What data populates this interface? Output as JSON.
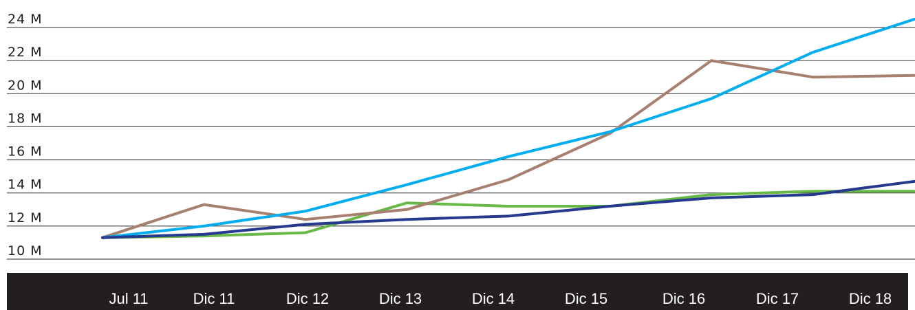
{
  "chart_data": {
    "type": "line",
    "categories": [
      "Jul 11",
      "Dic 11",
      "Dic 12",
      "Dic 13",
      "Dic 14",
      "Dic 15",
      "Dic 16",
      "Dic 17",
      "Dic 18"
    ],
    "y_ticks": [
      {
        "value": 24,
        "label": "24 M"
      },
      {
        "value": 22,
        "label": "22 M"
      },
      {
        "value": 20,
        "label": "20 M"
      },
      {
        "value": 18,
        "label": "18 M"
      },
      {
        "value": 16,
        "label": "16 M"
      },
      {
        "value": 14,
        "label": "14 M"
      },
      {
        "value": 12,
        "label": "12 M"
      },
      {
        "value": 10,
        "label": "10 M"
      }
    ],
    "ylim": [
      10,
      24
    ],
    "grid": true,
    "legend": "none",
    "series": [
      {
        "color": "#67b847",
        "values": [
          11.3,
          11.4,
          11.6,
          13.4,
          13.2,
          13.2,
          13.9,
          14.1,
          14.1
        ]
      },
      {
        "color": "#a77f6f",
        "values": [
          11.3,
          13.3,
          12.4,
          13.0,
          14.8,
          17.6,
          22.0,
          21.0,
          21.1
        ]
      },
      {
        "color": "#00adef",
        "values": [
          11.3,
          12.0,
          12.9,
          14.5,
          16.2,
          17.7,
          19.7,
          22.5,
          24.5
        ]
      },
      {
        "color": "#253a8f",
        "values": [
          11.3,
          11.5,
          12.1,
          12.4,
          12.6,
          13.2,
          13.7,
          13.9,
          14.7
        ]
      }
    ],
    "axis_band_color": "#231f20"
  }
}
